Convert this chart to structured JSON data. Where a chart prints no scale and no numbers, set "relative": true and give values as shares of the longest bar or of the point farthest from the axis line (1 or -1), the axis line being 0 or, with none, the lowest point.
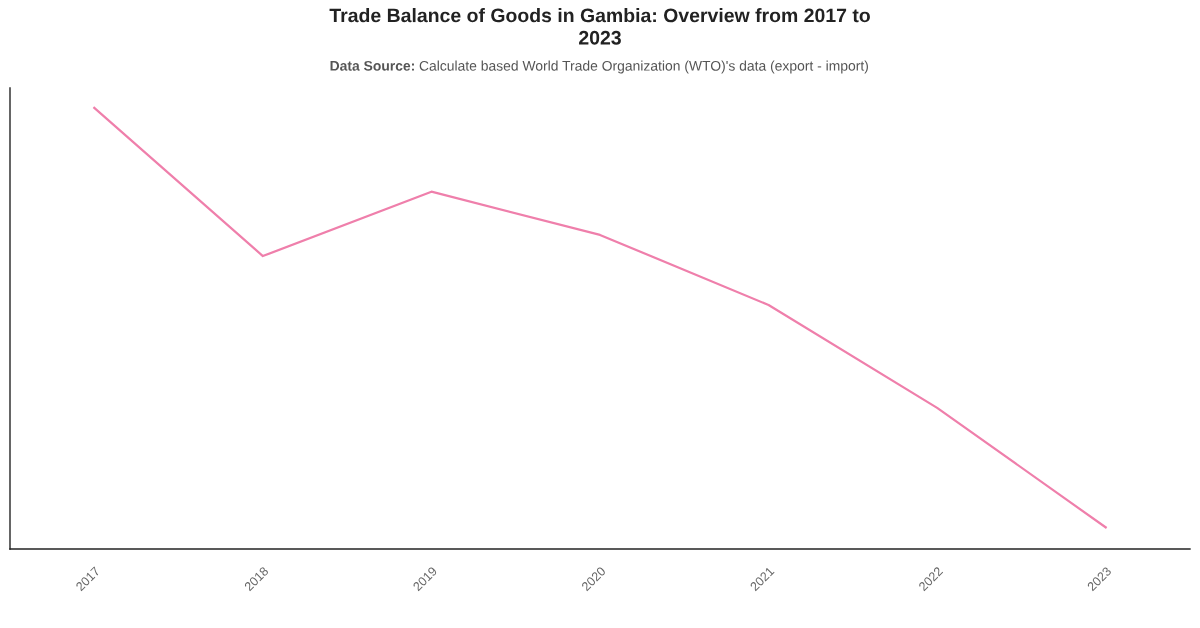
{
  "chart_data": {
    "type": "line",
    "title": "Trade Balance of Goods in Gambia: Overview from 2017 to 2023",
    "subtitle": "Data Source: Calculate based World Trade Organization (WTO)'s data (export - import)",
    "categories": [
      "2017",
      "2018",
      "2019",
      "2020",
      "2021",
      "2022",
      "2023"
    ],
    "series": [
      {
        "color": "#ef7fab",
        "values": [
          1,
          0.664,
          0.81,
          0.712,
          0.553,
          0.32,
          0.049
        ]
      }
    ],
    "relative": true,
    "marker": "none",
    "line_style": "solid"
  }
}
